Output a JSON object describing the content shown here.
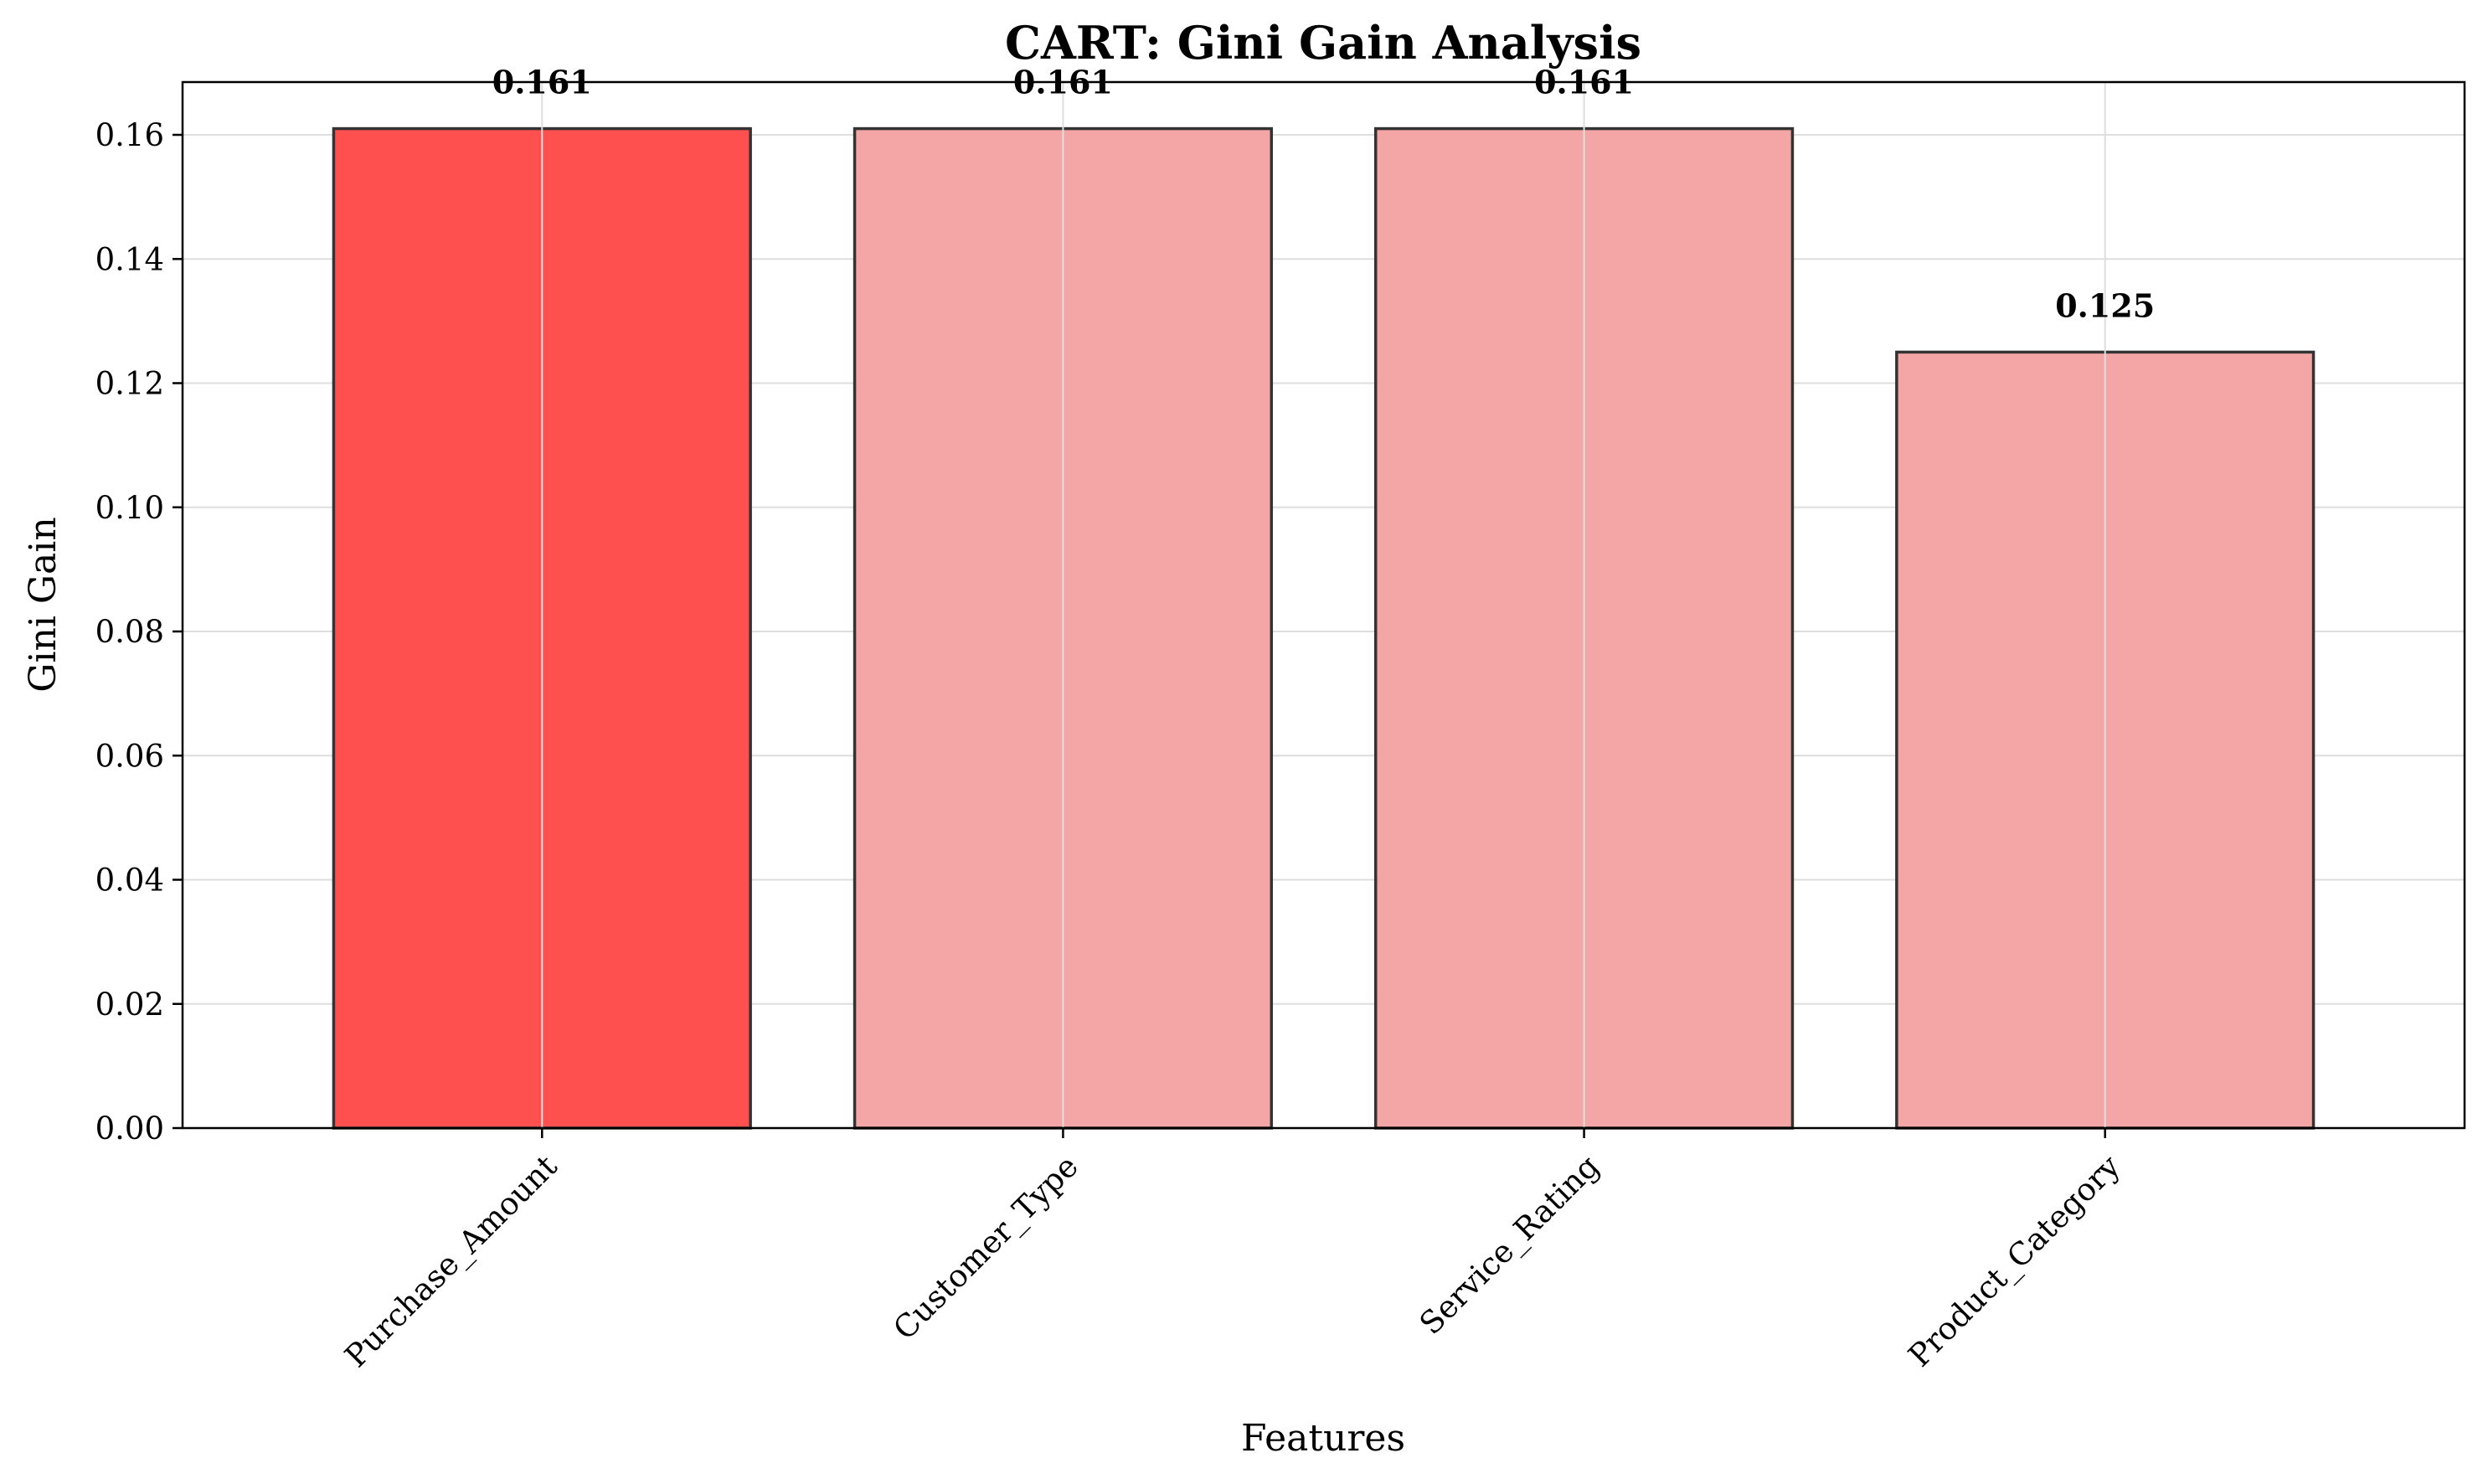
{
  "chart_data": {
    "type": "bar",
    "title": "CART: Gini Gain Analysis",
    "xlabel": "Features",
    "ylabel": "Gini Gain",
    "categories": [
      "Purchase_Amount",
      "Customer_Type",
      "Service_Rating",
      "Product_Category"
    ],
    "values": [
      0.161,
      0.161,
      0.161,
      0.125
    ],
    "value_labels": [
      "0.161",
      "0.161",
      "0.161",
      "0.125"
    ],
    "ylim": [
      0,
      0.1685
    ],
    "yticks": [
      0.0,
      0.02,
      0.04,
      0.06,
      0.08,
      0.1,
      0.12,
      0.14,
      0.16
    ],
    "ytick_labels": [
      "0.00",
      "0.02",
      "0.04",
      "0.06",
      "0.08",
      "0.10",
      "0.12",
      "0.14",
      "0.16"
    ],
    "grid": true,
    "highlight_index": 0,
    "colors": {
      "highlight": "#ff5050",
      "normal": "#f4a6a6",
      "edge": "#333333"
    }
  }
}
